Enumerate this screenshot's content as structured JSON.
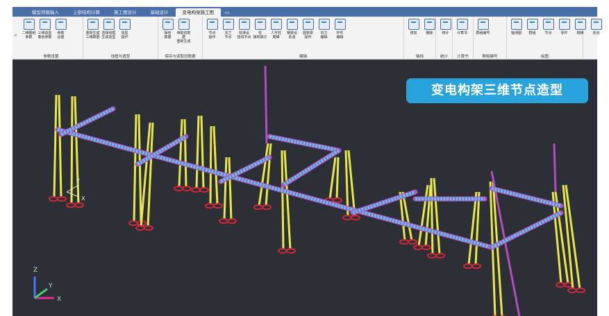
{
  "tabs": [
    {
      "label": "模型荷载输入",
      "active": false
    },
    {
      "label": "上部结构计算",
      "active": false
    },
    {
      "label": "施工图设计",
      "active": false
    },
    {
      "label": "基础设计",
      "active": false
    },
    {
      "label": "变电构架施工图",
      "active": true
    }
  ],
  "ribbon": {
    "groups": [
      {
        "name": "参数设置",
        "buttons": [
          "二维图纸\n参数",
          "三维造型\n着色参数",
          "参数\n设置"
        ]
      },
      {
        "name": "线框与造型",
        "buttons": [
          "重新生成\n三维数据",
          "选择线框\n生成造型",
          "造型\n操作"
        ]
      },
      {
        "name": "保存与读取旧数据",
        "buttons": [
          "保存\n数据",
          "读取旧数据\n重新生成"
        ]
      },
      {
        "name": "编辑",
        "buttons": [
          "节点\n操作",
          "法兰\n节点",
          "标准设\n挂线节点",
          "柱\n接地端子",
          "人字柱\n爬梯",
          "钢梁设\n走道",
          "圆管梁\n操作",
          "内力\n编辑",
          "杆件\n编辑"
        ]
      },
      {
        "name": "轴线",
        "buttons": [
          "增加",
          "删除"
        ]
      },
      {
        "name": "统计",
        "buttons": [
          "统计"
        ]
      },
      {
        "name": "计算书",
        "buttons": [
          "计算书"
        ]
      },
      {
        "name": "群组编号",
        "buttons": [
          "群组编号"
        ]
      },
      {
        "name": "绘图",
        "buttons": [
          "轴测图",
          "群组",
          "节点",
          "零件",
          "爬梯",
          "走道"
        ]
      }
    ]
  },
  "viewport": {
    "title": "变电构架三维节点造型",
    "ucs_labels": {
      "x": "X",
      "y": "Y",
      "z": "Z"
    }
  },
  "colors": {
    "tabbar": "#4a6fa8",
    "ribbon": "#f3f3f3",
    "viewport": "#2c2f35",
    "badge": "#29a3dc",
    "column": "#e8e84a",
    "beam": "#5ec3e6",
    "beam_edge": "#b04fc2",
    "base": "#d2283a"
  }
}
